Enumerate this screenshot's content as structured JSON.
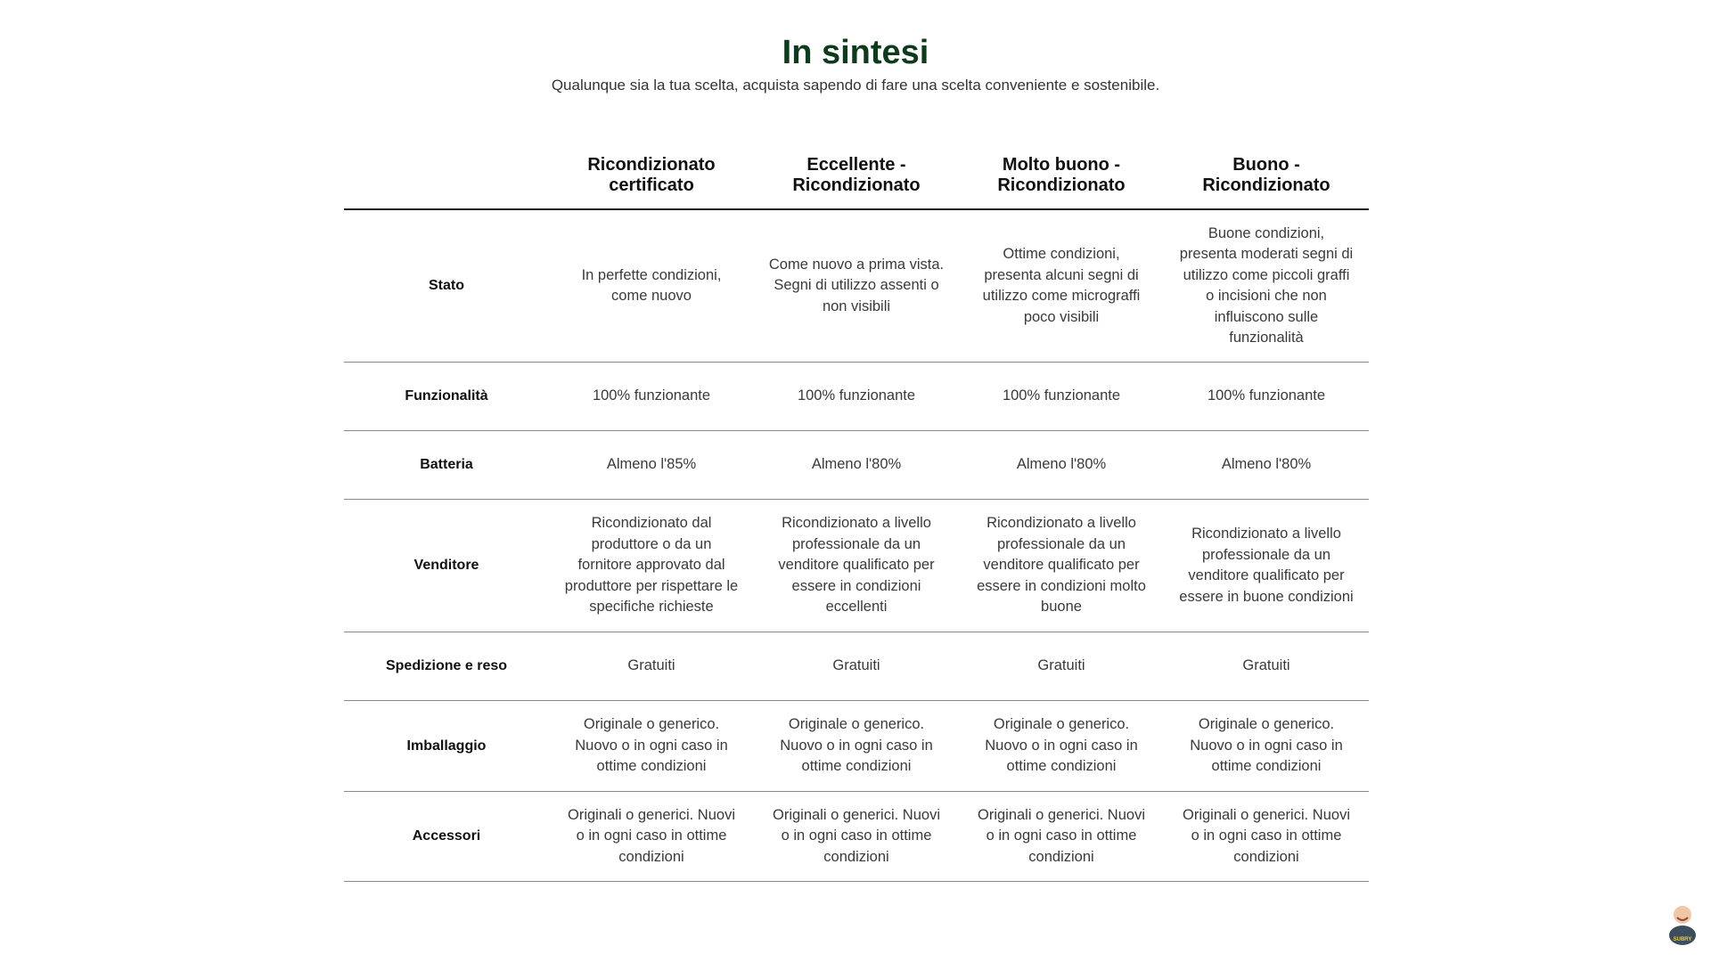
{
  "title": "In sintesi",
  "subtitle": "Qualunque sia la tua scelta, acquista sapendo di fare una scelta conveniente e sostenibile.",
  "columns": [
    "",
    "Ricondizionato certificato",
    "Eccellente - Ricondizionato",
    "Molto buono - Ricondizionato",
    "Buono - Ricondizionato"
  ],
  "rows": [
    {
      "label": "Stato",
      "values": [
        "In perfette condizioni, come nuovo",
        "Come nuovo a prima vista. Segni di utilizzo assenti o non visibili",
        "Ottime condizioni, presenta alcuni segni di utilizzo come micrograffi poco visibili",
        "Buone condizioni, presenta moderati segni di utilizzo come piccoli graffi o incisioni che non influiscono sulle funzionalità"
      ]
    },
    {
      "label": "Funzionalità",
      "values": [
        "100% funzionante",
        "100% funzionante",
        "100% funzionante",
        "100% funzionante"
      ]
    },
    {
      "label": "Batteria",
      "values": [
        "Almeno l'85%",
        "Almeno l'80%",
        "Almeno l'80%",
        "Almeno l'80%"
      ]
    },
    {
      "label": "Venditore",
      "values": [
        "Ricondizionato dal produttore o da un fornitore approvato dal produttore per rispettare le specifiche richieste",
        "Ricondizionato a livello professionale da un venditore qualificato per essere in condizioni eccellenti",
        "Ricondizionato a livello professionale da un venditore qualificato per essere in condizioni molto buone",
        "Ricondizionato a livello professionale da un venditore qualificato per essere in buone condizioni"
      ]
    },
    {
      "label": "Spedizione e reso",
      "values": [
        "Gratuiti",
        "Gratuiti",
        "Gratuiti",
        "Gratuiti"
      ]
    },
    {
      "label": "Imballaggio",
      "values": [
        "Originale o generico. Nuovo o in ogni caso in ottime condizioni",
        "Originale o generico. Nuovo o in ogni caso in ottime condizioni",
        "Originale o generico. Nuovo o in ogni caso in ottime condizioni",
        "Originale o generico. Nuovo o in ogni caso in ottime condizioni"
      ]
    },
    {
      "label": "Accessori",
      "values": [
        "Originali o generici. Nuovi o in ogni caso in ottime condizioni",
        "Originali o generici. Nuovi o in ogni caso in ottime condizioni",
        "Originali o generici. Nuovi o in ogni caso in ottime condizioni",
        "Originali o generici. Nuovi o in ogni caso in ottime condizioni"
      ]
    }
  ],
  "mascot": {
    "text": "SUBRY",
    "icon": "mascot-logo"
  },
  "colors": {
    "title": "#0e3b1c"
  }
}
